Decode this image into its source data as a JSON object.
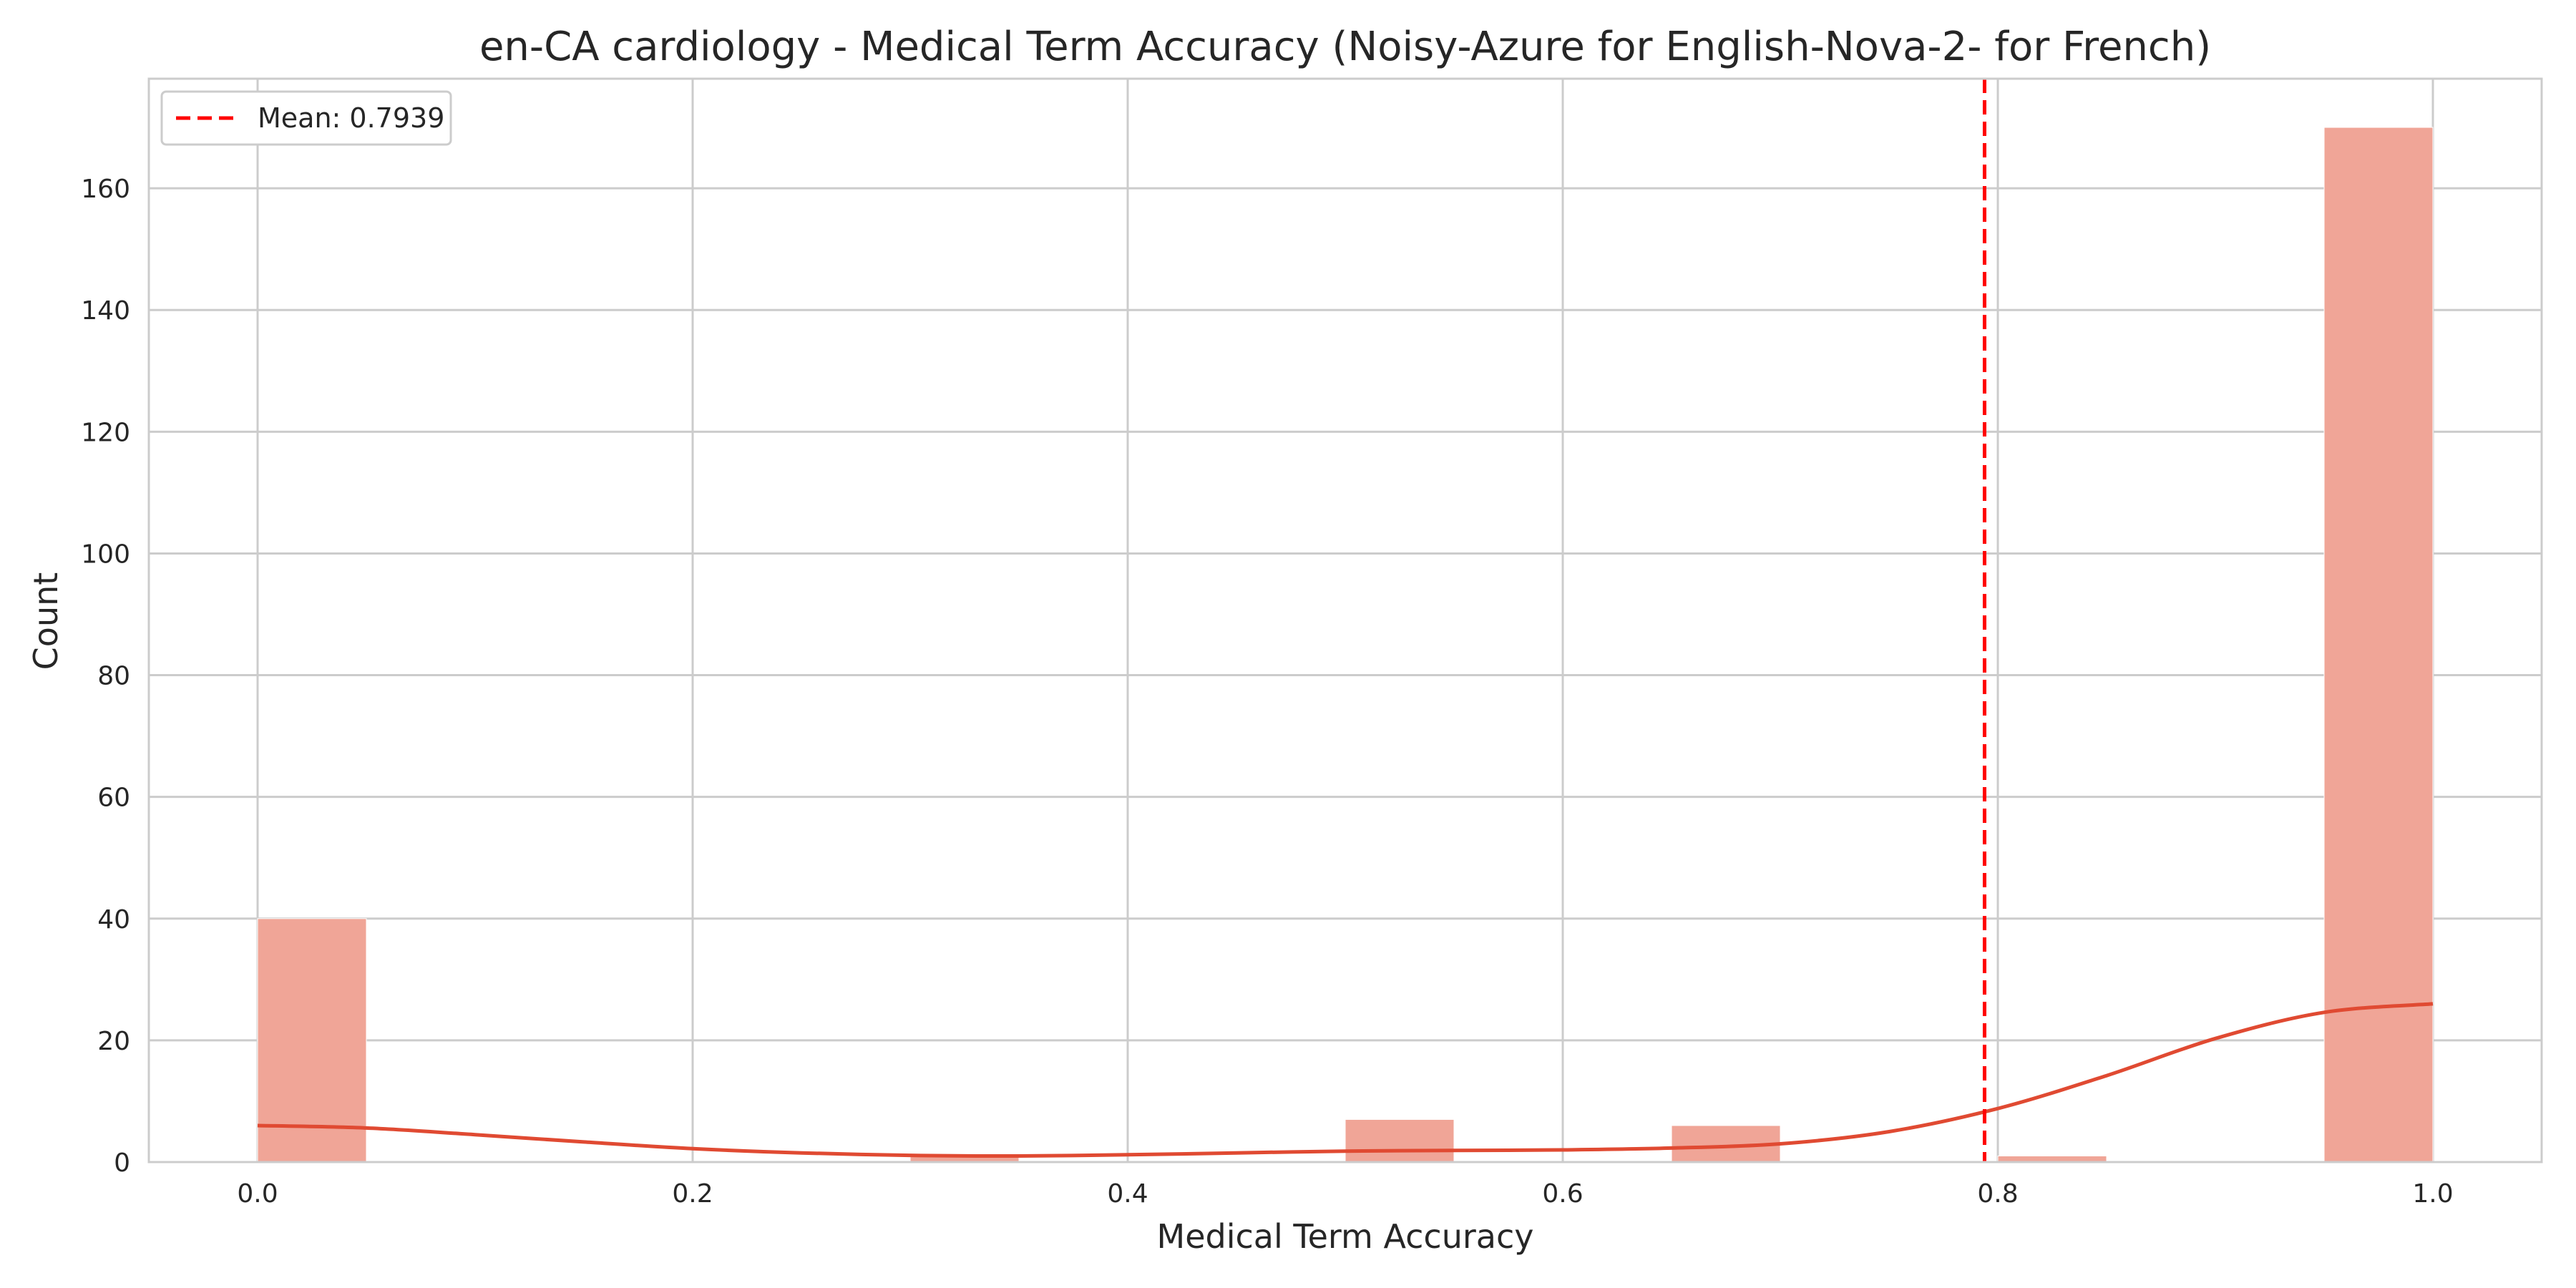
{
  "chart_data": {
    "type": "bar",
    "title": "en-CA cardiology - Medical Term Accuracy (Noisy-Azure for English-Nova-2- for French)",
    "xlabel": "Medical Term Accuracy",
    "ylabel": "Count",
    "xlim": [
      -0.05,
      1.05
    ],
    "ylim": [
      0,
      178
    ],
    "grid": true,
    "legend_placement": "top-left",
    "x_ticks": [
      "0.0",
      "0.2",
      "0.4",
      "0.6",
      "0.8",
      "1.0"
    ],
    "y_ticks": [
      "0",
      "20",
      "40",
      "60",
      "80",
      "100",
      "120",
      "140",
      "160"
    ],
    "bin_width": 0.05,
    "bins": [
      {
        "start": 0.0,
        "count": 40
      },
      {
        "start": 0.3,
        "count": 1
      },
      {
        "start": 0.5,
        "count": 7
      },
      {
        "start": 0.65,
        "count": 6
      },
      {
        "start": 0.8,
        "count": 1
      },
      {
        "start": 0.95,
        "count": 170
      }
    ],
    "kde": {
      "x": [
        0.0,
        0.05,
        0.1,
        0.15,
        0.2,
        0.25,
        0.3,
        0.35,
        0.4,
        0.45,
        0.5,
        0.55,
        0.6,
        0.65,
        0.7,
        0.75,
        0.8,
        0.85,
        0.9,
        0.95,
        1.0
      ],
      "y": [
        6.0,
        5.6,
        4.5,
        3.3,
        2.2,
        1.5,
        1.1,
        1.0,
        1.2,
        1.5,
        1.8,
        1.9,
        2.0,
        2.3,
        3.0,
        5.0,
        8.8,
        14.2,
        20.3,
        24.6,
        26.0
      ]
    },
    "mean_line": {
      "value": 0.7939,
      "label": "Mean: 0.7939"
    },
    "colors": {
      "bar": "#f0a597",
      "kde": "#e04a32",
      "mean": "#ff0000",
      "grid": "#cccccc"
    }
  }
}
